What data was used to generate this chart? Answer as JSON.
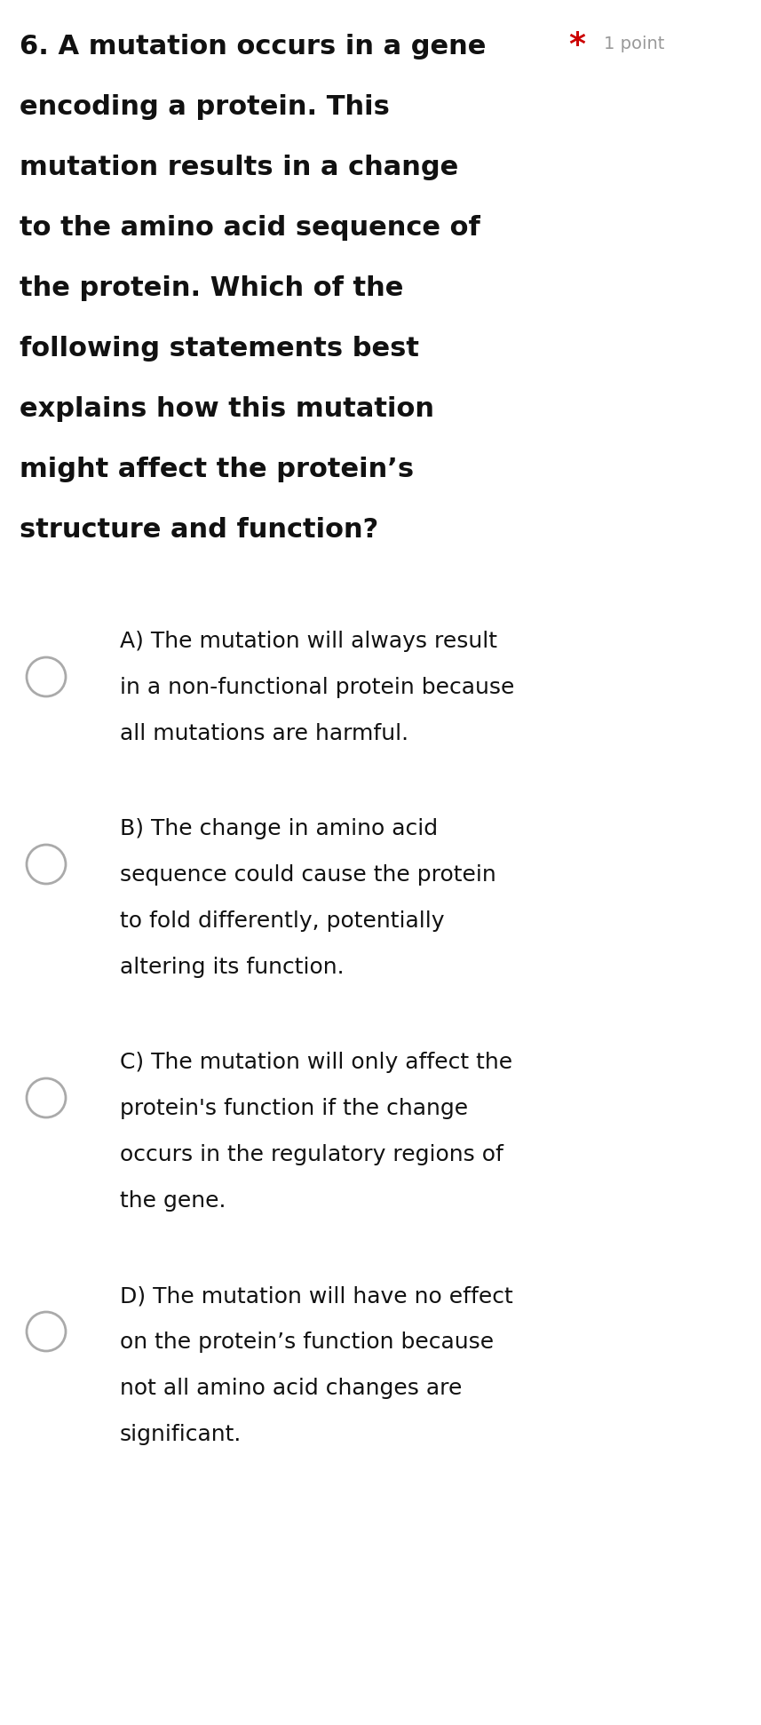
{
  "bg_color": "#ffffff",
  "fig_width": 8.57,
  "fig_height": 19.42,
  "question_line1": "6. A mutation occurs in a gene",
  "star_text": "*",
  "points_text": "1 point",
  "question_body_lines": [
    "encoding a protein. This",
    "mutation results in a change",
    "to the amino acid sequence of",
    "the protein. Which of the",
    "following statements best",
    "explains how this mutation",
    "might affect the protein’s",
    "structure and function?"
  ],
  "options": [
    {
      "lines": [
        "A) The mutation will always result",
        "in a non-functional protein because",
        "all mutations are harmful."
      ]
    },
    {
      "lines": [
        "B) The change in amino acid",
        "sequence could cause the protein",
        "to fold differently, potentially",
        "altering its function."
      ]
    },
    {
      "lines": [
        "C) The mutation will only affect the",
        "protein's function if the change",
        "occurs in the regulatory regions of",
        "the gene."
      ]
    },
    {
      "lines": [
        "D) The mutation will have no effect",
        "on the protein’s function because",
        "not all amino acid changes are",
        "significant."
      ]
    }
  ],
  "q_bold_fontsize": 22,
  "q_bold_color": "#111111",
  "option_fontsize": 18,
  "option_color": "#111111",
  "points_fontsize": 14,
  "points_color": "#999999",
  "star_color": "#cc0000",
  "circle_color": "#aaaaaa"
}
